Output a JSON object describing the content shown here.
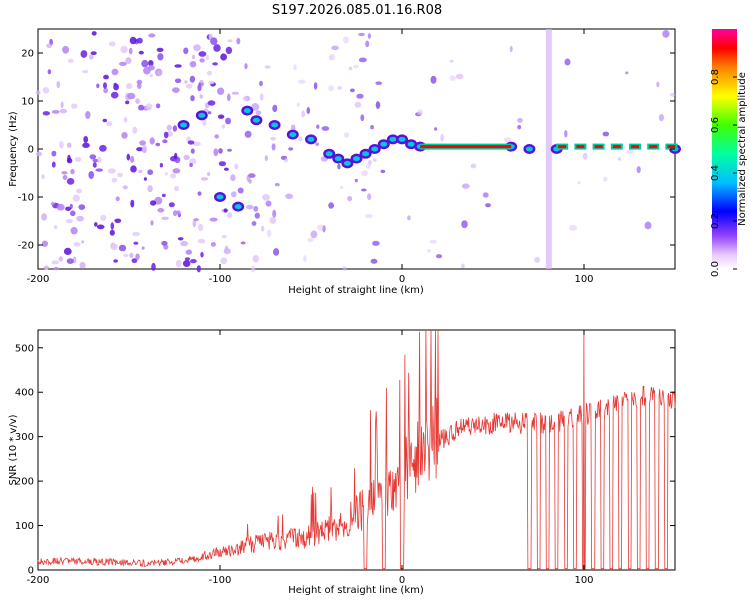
{
  "chart_data": [
    {
      "type": "heatmap",
      "title": "S197.2026.085.01.16.R08",
      "xlabel": "Height of straight line (km)",
      "ylabel": "Frequency (Hz)",
      "xlim": [
        -200,
        150
      ],
      "ylim": [
        -25,
        25
      ],
      "xticks": [
        -200,
        -100,
        0,
        100
      ],
      "yticks": [
        -20,
        -10,
        0,
        10,
        20
      ],
      "colorbar": {
        "label": "Normalized spectral amplitude",
        "range": [
          0.0,
          1.0
        ],
        "ticks": [
          0.0,
          0.2,
          0.4,
          0.6,
          0.8
        ]
      },
      "carrier_track": [
        {
          "x": -120,
          "f": 5
        },
        {
          "x": -110,
          "f": 7
        },
        {
          "x": -100,
          "f": -10
        },
        {
          "x": -90,
          "f": -12
        },
        {
          "x": -85,
          "f": 8
        },
        {
          "x": -80,
          "f": 6
        },
        {
          "x": -70,
          "f": 5
        },
        {
          "x": -60,
          "f": 3
        },
        {
          "x": -50,
          "f": 2
        },
        {
          "x": -40,
          "f": -1
        },
        {
          "x": -35,
          "f": -2
        },
        {
          "x": -30,
          "f": -3
        },
        {
          "x": -25,
          "f": -2
        },
        {
          "x": -20,
          "f": -1
        },
        {
          "x": -15,
          "f": 0
        },
        {
          "x": -10,
          "f": 1
        },
        {
          "x": -5,
          "f": 2
        },
        {
          "x": 0,
          "f": 2
        },
        {
          "x": 5,
          "f": 1
        },
        {
          "x": 10,
          "f": 0.5
        },
        {
          "x": 60,
          "f": 0.5
        },
        {
          "x": 70,
          "f": 0
        },
        {
          "x": 85,
          "f": 0
        },
        {
          "x": 150,
          "f": 0
        }
      ]
    },
    {
      "type": "line",
      "xlabel": "Height of straight line (km)",
      "ylabel": "SNR (10 * v/v)",
      "xlim": [
        -200,
        150
      ],
      "ylim": [
        0,
        540
      ],
      "xticks": [
        -200,
        -100,
        0,
        100
      ],
      "yticks": [
        0,
        100,
        200,
        300,
        400,
        500
      ],
      "series": [
        {
          "name": "SNR",
          "color": "#e53935",
          "x": [
            -200,
            -180,
            -160,
            -140,
            -120,
            -110,
            -100,
            -90,
            -80,
            -70,
            -60,
            -50,
            -40,
            -30,
            -20,
            -10,
            0,
            10,
            20,
            30,
            40,
            50,
            60,
            70,
            80,
            90,
            100,
            110,
            120,
            130,
            140,
            150
          ],
          "values": [
            20,
            20,
            18,
            15,
            20,
            30,
            40,
            50,
            60,
            65,
            70,
            75,
            90,
            110,
            140,
            175,
            215,
            260,
            290,
            315,
            325,
            330,
            330,
            330,
            330,
            335,
            350,
            360,
            375,
            390,
            400,
            380
          ]
        }
      ],
      "dropouts_x": [
        -20,
        -10,
        0,
        70,
        75,
        80,
        85,
        90,
        95,
        100,
        105,
        110,
        115,
        120,
        125,
        130,
        135,
        140,
        145
      ],
      "spike": {
        "x": 100,
        "value": 540
      }
    }
  ]
}
